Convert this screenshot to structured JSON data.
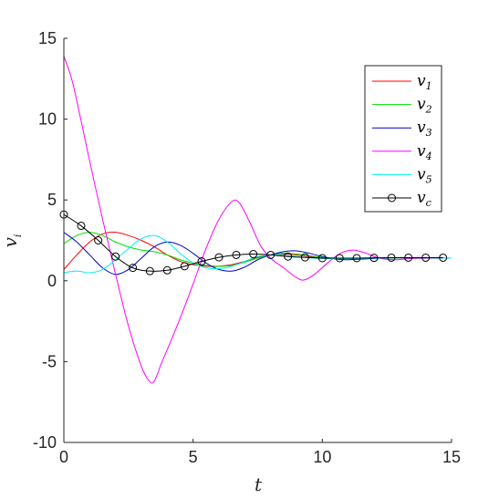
{
  "chart_data": {
    "type": "line",
    "xlabel": "t",
    "ylabel": "v_i",
    "xlim": [
      0,
      15
    ],
    "ylim": [
      -10,
      15
    ],
    "xticks": [
      0,
      5,
      10,
      15
    ],
    "yticks": [
      -10,
      -5,
      0,
      5,
      10,
      15
    ],
    "xtick_labels": [
      "0",
      "5",
      "10",
      "15"
    ],
    "ytick_labels": [
      "-10",
      "-5",
      "0",
      "5",
      "10",
      "15"
    ],
    "grid": false,
    "legend_position": "top-right",
    "series": [
      {
        "name": "v_1",
        "base": "v",
        "sub": "1",
        "color": "#ff0000",
        "marker": "none",
        "points": [
          [
            0,
            0.7
          ],
          [
            0.5,
            1.6
          ],
          [
            1.0,
            2.4
          ],
          [
            1.5,
            2.9
          ],
          [
            2.0,
            3.0
          ],
          [
            2.5,
            2.8
          ],
          [
            3.0,
            2.5
          ],
          [
            3.5,
            2.1
          ],
          [
            4.0,
            1.6
          ],
          [
            4.5,
            1.2
          ],
          [
            5.0,
            1.0
          ],
          [
            5.5,
            0.9
          ],
          [
            6.0,
            0.9
          ],
          [
            6.5,
            1.0
          ],
          [
            7.0,
            1.2
          ],
          [
            7.5,
            1.45
          ],
          [
            8.0,
            1.6
          ],
          [
            8.5,
            1.65
          ],
          [
            9.0,
            1.6
          ],
          [
            9.5,
            1.5
          ],
          [
            10.0,
            1.42
          ],
          [
            10.5,
            1.38
          ],
          [
            11.0,
            1.37
          ],
          [
            12.0,
            1.4
          ],
          [
            13.0,
            1.42
          ],
          [
            15.0,
            1.4
          ]
        ]
      },
      {
        "name": "v_2",
        "base": "v",
        "sub": "2",
        "color": "#00dd00",
        "marker": "none",
        "points": [
          [
            0,
            2.3
          ],
          [
            0.5,
            2.8
          ],
          [
            1.0,
            3.0
          ],
          [
            1.5,
            2.8
          ],
          [
            2.0,
            2.4
          ],
          [
            2.5,
            2.1
          ],
          [
            3.0,
            1.9
          ],
          [
            3.5,
            1.8
          ],
          [
            4.0,
            1.6
          ],
          [
            4.5,
            1.3
          ],
          [
            5.0,
            1.1
          ],
          [
            5.5,
            0.95
          ],
          [
            6.0,
            0.9
          ],
          [
            6.5,
            0.95
          ],
          [
            7.0,
            1.15
          ],
          [
            7.5,
            1.4
          ],
          [
            8.0,
            1.6
          ],
          [
            8.5,
            1.7
          ],
          [
            9.0,
            1.65
          ],
          [
            9.5,
            1.55
          ],
          [
            10.0,
            1.45
          ],
          [
            10.5,
            1.4
          ],
          [
            11.0,
            1.38
          ],
          [
            12.0,
            1.4
          ],
          [
            13.0,
            1.42
          ],
          [
            15.0,
            1.4
          ]
        ]
      },
      {
        "name": "v_3",
        "base": "v",
        "sub": "3",
        "color": "#0000cc",
        "marker": "none",
        "points": [
          [
            0,
            3.0
          ],
          [
            0.5,
            2.4
          ],
          [
            1.0,
            1.6
          ],
          [
            1.5,
            0.8
          ],
          [
            2.0,
            0.4
          ],
          [
            2.5,
            0.7
          ],
          [
            3.0,
            1.4
          ],
          [
            3.5,
            2.1
          ],
          [
            4.0,
            2.4
          ],
          [
            4.5,
            2.2
          ],
          [
            5.0,
            1.7
          ],
          [
            5.5,
            1.1
          ],
          [
            6.0,
            0.7
          ],
          [
            6.5,
            0.6
          ],
          [
            7.0,
            0.85
          ],
          [
            7.5,
            1.3
          ],
          [
            8.0,
            1.6
          ],
          [
            8.5,
            1.8
          ],
          [
            9.0,
            1.85
          ],
          [
            9.5,
            1.7
          ],
          [
            10.0,
            1.5
          ],
          [
            10.5,
            1.35
          ],
          [
            11.0,
            1.3
          ],
          [
            12.0,
            1.38
          ],
          [
            13.0,
            1.42
          ],
          [
            15.0,
            1.4
          ]
        ]
      },
      {
        "name": "v_4",
        "base": "v",
        "sub": "4",
        "color": "#ff00ff",
        "marker": "none",
        "points": [
          [
            0,
            13.9
          ],
          [
            0.3,
            12.5
          ],
          [
            0.6,
            10.4
          ],
          [
            1.0,
            7.4
          ],
          [
            1.5,
            3.8
          ],
          [
            2.0,
            0.4
          ],
          [
            2.5,
            -2.8
          ],
          [
            3.0,
            -5.3
          ],
          [
            3.3,
            -6.2
          ],
          [
            3.5,
            -6.2
          ],
          [
            3.8,
            -5.0
          ],
          [
            4.2,
            -3.5
          ],
          [
            4.6,
            -1.9
          ],
          [
            5.0,
            -0.2
          ],
          [
            5.5,
            2.0
          ],
          [
            6.0,
            3.8
          ],
          [
            6.5,
            4.9
          ],
          [
            6.8,
            4.8
          ],
          [
            7.2,
            3.6
          ],
          [
            7.6,
            2.2
          ],
          [
            8.0,
            1.4
          ],
          [
            8.5,
            0.8
          ],
          [
            9.0,
            0.2
          ],
          [
            9.3,
            0.05
          ],
          [
            9.7,
            0.4
          ],
          [
            10.2,
            1.1
          ],
          [
            10.7,
            1.7
          ],
          [
            11.2,
            1.9
          ],
          [
            11.7,
            1.7
          ],
          [
            12.2,
            1.4
          ],
          [
            12.8,
            1.3
          ],
          [
            13.5,
            1.38
          ],
          [
            15.0,
            1.4
          ]
        ]
      },
      {
        "name": "v_5",
        "base": "v",
        "sub": "5",
        "color": "#00eeee",
        "marker": "none",
        "points": [
          [
            0,
            0.5
          ],
          [
            0.5,
            0.6
          ],
          [
            1.0,
            0.5
          ],
          [
            1.5,
            0.7
          ],
          [
            2.0,
            1.3
          ],
          [
            2.5,
            2.0
          ],
          [
            3.0,
            2.6
          ],
          [
            3.5,
            2.8
          ],
          [
            4.0,
            2.4
          ],
          [
            4.5,
            1.7
          ],
          [
            5.0,
            1.1
          ],
          [
            5.5,
            0.8
          ],
          [
            6.0,
            0.75
          ],
          [
            6.5,
            0.9
          ],
          [
            7.0,
            1.2
          ],
          [
            7.5,
            1.5
          ],
          [
            8.0,
            1.6
          ],
          [
            8.5,
            1.6
          ],
          [
            9.0,
            1.5
          ],
          [
            9.5,
            1.42
          ],
          [
            10.0,
            1.38
          ],
          [
            11.0,
            1.37
          ],
          [
            12.0,
            1.4
          ],
          [
            13.0,
            1.42
          ],
          [
            15.0,
            1.4
          ]
        ]
      },
      {
        "name": "v_c",
        "base": "v",
        "sub": "c",
        "color": "#000000",
        "marker": "circle",
        "points": [
          [
            0,
            4.1
          ],
          [
            0.67,
            3.4
          ],
          [
            1.33,
            2.5
          ],
          [
            2.0,
            1.5
          ],
          [
            2.67,
            0.8
          ],
          [
            3.33,
            0.6
          ],
          [
            4.0,
            0.65
          ],
          [
            4.67,
            0.9
          ],
          [
            5.33,
            1.2
          ],
          [
            6.0,
            1.45
          ],
          [
            6.67,
            1.6
          ],
          [
            7.33,
            1.65
          ],
          [
            8.0,
            1.6
          ],
          [
            8.67,
            1.5
          ],
          [
            9.33,
            1.45
          ],
          [
            10.0,
            1.4
          ],
          [
            10.67,
            1.4
          ],
          [
            11.33,
            1.4
          ],
          [
            12.0,
            1.42
          ],
          [
            12.67,
            1.43
          ],
          [
            13.33,
            1.43
          ],
          [
            14.0,
            1.43
          ],
          [
            14.67,
            1.43
          ]
        ]
      }
    ]
  }
}
